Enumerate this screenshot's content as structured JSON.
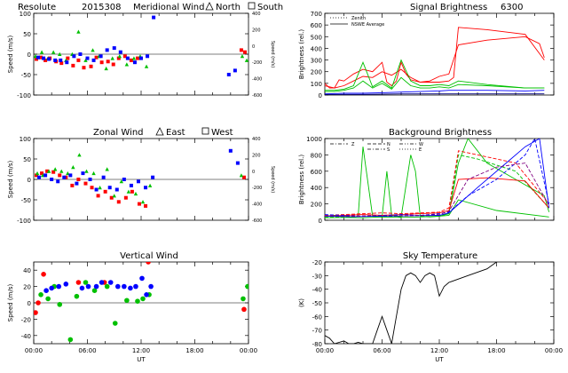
{
  "header": {
    "station": "Resolute",
    "date_code": "2015308",
    "site_label": "6300"
  },
  "chart_data": [
    {
      "id": "meridional",
      "type": "scatter",
      "title": "Meridional Wind",
      "legend": [
        {
          "marker": "triangle",
          "label": "North"
        },
        {
          "marker": "square",
          "label": "South"
        }
      ],
      "ylabel": "Speed (m/s)",
      "ylabel_right": "Speed (m/s)",
      "ylim": [
        -100,
        100
      ],
      "yticks": [
        -100,
        -50,
        0,
        50,
        100
      ],
      "yticks_right": [
        -600,
        -400,
        -200,
        0,
        200,
        400
      ],
      "xlim": [
        0,
        24
      ],
      "series": [
        {
          "color": "#ff0000",
          "x": [
            0.3,
            0.8,
            1.3,
            1.8,
            2.5,
            3.1,
            3.8,
            4.4,
            5.0,
            5.6,
            6.4,
            7.0,
            7.6,
            8.3,
            8.9,
            9.5,
            10.2,
            10.9,
            11.6,
            23.2,
            23.6
          ],
          "y": [
            -12,
            -8,
            -15,
            -10,
            -18,
            -22,
            -10,
            -28,
            -15,
            -33,
            -30,
            -8,
            -20,
            -18,
            -25,
            -10,
            -5,
            -15,
            -10,
            10,
            5
          ]
        },
        {
          "color": "#00c000",
          "x": [
            0.2,
            0.9,
            1.6,
            2.2,
            2.9,
            3.6,
            4.3,
            5.0,
            5.8,
            6.6,
            7.3,
            8.1,
            8.8,
            9.6,
            10.4,
            11.2,
            11.9,
            12.6,
            23.3,
            23.8
          ],
          "y": [
            -5,
            5,
            -10,
            5,
            0,
            -15,
            0,
            55,
            -15,
            10,
            -5,
            -35,
            -10,
            -5,
            -25,
            -10,
            -5,
            -30,
            -5,
            -15
          ]
        },
        {
          "color": "#0000ff",
          "x": [
            0.5,
            1.1,
            1.7,
            2.4,
            3.0,
            3.7,
            4.5,
            5.2,
            6.0,
            6.7,
            7.5,
            8.2,
            9.0,
            9.7,
            10.5,
            11.3,
            12.0,
            12.7,
            13.4,
            21.8,
            22.5
          ],
          "y": [
            -8,
            -10,
            -12,
            -15,
            -15,
            -20,
            -5,
            0,
            -10,
            -15,
            -5,
            10,
            15,
            5,
            -10,
            -20,
            -10,
            -5,
            90,
            -50,
            -40
          ]
        }
      ]
    },
    {
      "id": "zonal",
      "type": "scatter",
      "title": "Zonal Wind",
      "legend": [
        {
          "marker": "triangle",
          "label": "East"
        },
        {
          "marker": "square",
          "label": "West"
        }
      ],
      "ylabel": "Speed (m/s)",
      "ylabel_right": "Speed (m/s)",
      "ylim": [
        -100,
        100
      ],
      "yticks": [
        -100,
        -50,
        0,
        50,
        100
      ],
      "yticks_right": [
        -600,
        -400,
        -200,
        0,
        200,
        400
      ],
      "xlim": [
        0,
        24
      ],
      "series": [
        {
          "color": "#ff0000",
          "x": [
            0.3,
            0.9,
            1.5,
            2.2,
            2.9,
            3.6,
            4.3,
            5.0,
            5.8,
            6.5,
            7.2,
            8.0,
            8.7,
            9.5,
            10.3,
            11.0,
            11.8,
            12.5,
            23.5
          ],
          "y": [
            10,
            15,
            20,
            18,
            10,
            5,
            -15,
            0,
            -10,
            -20,
            -40,
            -30,
            -45,
            -55,
            -45,
            -30,
            -60,
            -65,
            5
          ]
        },
        {
          "color": "#00c000",
          "x": [
            0.4,
            1.0,
            1.7,
            2.4,
            3.1,
            3.8,
            4.4,
            5.1,
            5.9,
            6.7,
            7.4,
            8.2,
            9.0,
            9.8,
            10.6,
            11.4,
            12.2,
            13.0,
            23.2
          ],
          "y": [
            15,
            10,
            20,
            25,
            20,
            15,
            30,
            60,
            20,
            15,
            -20,
            25,
            -40,
            -5,
            -30,
            -35,
            -55,
            -15,
            10
          ]
        },
        {
          "color": "#0000ff",
          "x": [
            0.6,
            1.3,
            2.0,
            2.7,
            3.4,
            4.1,
            4.8,
            5.5,
            6.3,
            7.0,
            7.8,
            8.5,
            9.3,
            10.1,
            10.9,
            11.7,
            12.5,
            13.3,
            22.0,
            22.8
          ],
          "y": [
            5,
            10,
            0,
            -5,
            5,
            10,
            -10,
            15,
            0,
            -25,
            5,
            -20,
            -25,
            0,
            -15,
            -5,
            -20,
            5,
            70,
            40
          ]
        }
      ]
    },
    {
      "id": "vertical",
      "type": "scatter",
      "title": "Vertical Wind",
      "ylabel": "Speed (m/s)",
      "ylim": [
        -50,
        50
      ],
      "yticks": [
        -40,
        -20,
        0,
        20,
        40
      ],
      "xlim": [
        0,
        24
      ],
      "xticks": [
        "00:00",
        "06:00",
        "12:00",
        "18:00",
        "00:00"
      ],
      "xlabel": "UT",
      "series": [
        {
          "color": "#ff0000",
          "x": [
            0.2,
            0.5,
            1.1,
            5.0,
            7.9,
            12.8,
            23.5
          ],
          "y": [
            -12,
            0,
            35,
            25,
            25,
            50,
            -8
          ]
        },
        {
          "color": "#00c000",
          "x": [
            0.8,
            1.6,
            2.3,
            2.9,
            4.1,
            4.8,
            5.8,
            6.8,
            8.2,
            9.1,
            10.4,
            11.6,
            12.2,
            12.9,
            23.4,
            23.9
          ],
          "y": [
            10,
            5,
            20,
            -2,
            -45,
            8,
            25,
            15,
            20,
            -25,
            3,
            2,
            5,
            10,
            5,
            20
          ]
        },
        {
          "color": "#0000ff",
          "x": [
            1.4,
            2.0,
            2.8,
            3.6,
            5.4,
            6.1,
            7.0,
            7.6,
            8.6,
            9.4,
            10.1,
            10.8,
            11.4,
            12.1,
            12.6,
            13.1
          ],
          "y": [
            15,
            18,
            20,
            23,
            18,
            20,
            20,
            25,
            25,
            20,
            20,
            18,
            20,
            30,
            10,
            20
          ]
        }
      ]
    },
    {
      "id": "signal",
      "type": "line",
      "title": "Signal Brightness",
      "legend": [
        {
          "style": "dotted",
          "label": "Zenith"
        },
        {
          "style": "solid",
          "label": "NSWE Average"
        }
      ],
      "ylabel": "Brightness (rel.)",
      "ylim": [
        0,
        700
      ],
      "yticks": [
        0,
        100,
        200,
        300,
        400,
        500,
        600,
        700
      ],
      "xlim": [
        0,
        24
      ],
      "series": [
        {
          "color": "#ff0000",
          "x": [
            0,
            0.5,
            1,
            1.5,
            2,
            3,
            4,
            5,
            6,
            6.5,
            7,
            7.5,
            8,
            8.5,
            9,
            10,
            11,
            12,
            13,
            13.5,
            14,
            17,
            21,
            23
          ],
          "y": [
            100,
            60,
            60,
            130,
            120,
            180,
            220,
            200,
            280,
            110,
            80,
            120,
            280,
            180,
            130,
            110,
            110,
            110,
            120,
            150,
            580,
            560,
            520,
            300
          ]
        },
        {
          "color": "#ff0000",
          "x": [
            0,
            1,
            2,
            3,
            4,
            5,
            6,
            7,
            8,
            9,
            10,
            11,
            12,
            13,
            14,
            17,
            21,
            22.5,
            23
          ],
          "y": [
            80,
            60,
            80,
            120,
            160,
            150,
            200,
            170,
            220,
            150,
            110,
            120,
            160,
            180,
            430,
            470,
            500,
            440,
            320
          ]
        },
        {
          "color": "#00c000",
          "x": [
            0,
            1,
            2,
            3,
            4,
            5,
            6,
            7,
            8,
            9,
            10,
            11,
            12,
            13,
            14,
            17,
            21,
            23
          ],
          "y": [
            40,
            40,
            50,
            80,
            280,
            70,
            120,
            60,
            300,
            120,
            80,
            80,
            90,
            80,
            120,
            90,
            60,
            60
          ]
        },
        {
          "color": "#00c000",
          "x": [
            0,
            1,
            2,
            3,
            4,
            5,
            6,
            7,
            8,
            9,
            10,
            11,
            12,
            13,
            14,
            17,
            21,
            23
          ],
          "y": [
            30,
            30,
            40,
            60,
            120,
            60,
            100,
            50,
            150,
            80,
            60,
            60,
            70,
            60,
            90,
            80,
            60,
            60
          ]
        },
        {
          "color": "#0000ff",
          "x": [
            0,
            2,
            4,
            6,
            8,
            10,
            12,
            13,
            14,
            17,
            21,
            23
          ],
          "y": [
            10,
            15,
            15,
            20,
            25,
            30,
            35,
            40,
            40,
            40,
            35,
            40
          ]
        },
        {
          "color": "#000080",
          "x": [
            0,
            4,
            8,
            12,
            16,
            20,
            23
          ],
          "y": [
            5,
            5,
            10,
            10,
            10,
            10,
            10
          ]
        }
      ]
    },
    {
      "id": "background",
      "type": "line",
      "title": "Background Brightness",
      "legend": [
        {
          "style": "dash-dot",
          "label": "Z"
        },
        {
          "style": "dash",
          "label": "N"
        },
        {
          "style": "dash-dot-dot",
          "label": "W"
        },
        {
          "style": "dash-dot",
          "label": "S"
        },
        {
          "style": "dotted",
          "label": "E"
        }
      ],
      "ylabel": "Brightness (rel.)",
      "ylim": [
        0,
        1000
      ],
      "yticks": [
        0,
        200,
        400,
        600,
        800,
        1000
      ],
      "xlim": [
        0,
        24
      ],
      "series": [
        {
          "color": "#00c000",
          "x": [
            0,
            1,
            2,
            3,
            3.5,
            4,
            5,
            6,
            6.5,
            7,
            8,
            9,
            9.5,
            10,
            11,
            12,
            13,
            14,
            15,
            17,
            20,
            23,
            23.5
          ],
          "y": [
            50,
            60,
            50,
            40,
            50,
            900,
            50,
            40,
            600,
            60,
            40,
            800,
            600,
            50,
            40,
            50,
            80,
            700,
            1000,
            700,
            500,
            300,
            100
          ]
        },
        {
          "color": "#00c000",
          "x": [
            0,
            2,
            4,
            6,
            8,
            10,
            12,
            13,
            14,
            16,
            20,
            23.5
          ],
          "y": [
            40,
            45,
            50,
            45,
            50,
            55,
            60,
            80,
            800,
            750,
            600,
            150
          ]
        },
        {
          "color": "#00c000",
          "x": [
            0,
            2,
            4,
            6,
            8,
            10,
            12,
            13,
            14,
            18,
            23.5
          ],
          "y": [
            30,
            35,
            30,
            40,
            35,
            40,
            50,
            60,
            250,
            120,
            40
          ]
        },
        {
          "color": "#ff0000",
          "x": [
            0,
            2,
            4,
            6,
            8,
            10,
            12,
            13,
            14,
            16,
            20,
            23.5
          ],
          "y": [
            60,
            70,
            80,
            90,
            80,
            90,
            100,
            150,
            850,
            800,
            700,
            200
          ]
        },
        {
          "color": "#ff0000",
          "x": [
            0,
            2,
            4,
            6,
            8,
            10,
            12,
            13,
            14,
            17,
            21,
            23.5
          ],
          "y": [
            50,
            60,
            70,
            60,
            70,
            80,
            90,
            120,
            500,
            520,
            480,
            150
          ]
        },
        {
          "color": "#0000ff",
          "x": [
            0,
            2,
            4,
            6,
            8,
            10,
            12,
            13,
            15,
            18,
            21,
            22,
            23.5
          ],
          "y": [
            70,
            60,
            50,
            60,
            70,
            60,
            80,
            100,
            300,
            500,
            800,
            1000,
            200
          ]
        },
        {
          "color": "#0000ff",
          "x": [
            0,
            3,
            6,
            9,
            12,
            13,
            16,
            19,
            21,
            22.5,
            23.5
          ],
          "y": [
            50,
            45,
            50,
            55,
            60,
            90,
            400,
            700,
            900,
            1000,
            150
          ]
        },
        {
          "color": "#800080",
          "x": [
            0,
            3,
            6,
            9,
            12,
            13,
            15,
            18,
            21,
            23.5
          ],
          "y": [
            55,
            50,
            60,
            55,
            70,
            110,
            500,
            650,
            700,
            180
          ]
        }
      ]
    },
    {
      "id": "sky",
      "type": "line",
      "title": "Sky Temperature",
      "ylabel": "(K)",
      "ylim": [
        -80,
        -20
      ],
      "yticks": [
        -80,
        -70,
        -60,
        -50,
        -40,
        -30,
        -20
      ],
      "xlim": [
        0,
        24
      ],
      "xticks": [
        "00:00",
        "06:00",
        "12:00",
        "18:00",
        "00:00"
      ],
      "xlabel": "UT",
      "series": [
        {
          "color": "#000000",
          "x": [
            0,
            0.5,
            1,
            1.5,
            2,
            2.5,
            3,
            3.5,
            4,
            4.5,
            5,
            5.5,
            6,
            6.5,
            7,
            7.5,
            8,
            8.5,
            9,
            9.5,
            10,
            10.5,
            11,
            11.5,
            12,
            12.5,
            13,
            15,
            17,
            18,
            19
          ],
          "y": [
            -74,
            -76,
            -80,
            -79,
            -78,
            -80,
            -80,
            -79,
            -80,
            -80,
            -80,
            -70,
            -60,
            -70,
            -80,
            -60,
            -40,
            -30,
            -28,
            -30,
            -35,
            -30,
            -28,
            -30,
            -45,
            -38,
            -35,
            -30,
            -25,
            -20,
            -18
          ]
        }
      ]
    }
  ]
}
